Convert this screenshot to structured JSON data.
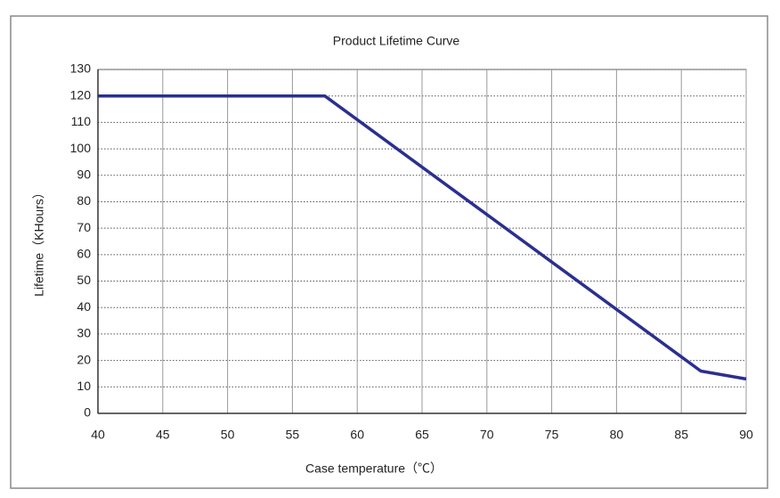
{
  "chart_data": {
    "type": "line",
    "title": "Product Lifetime Curve",
    "xlabel": "Case temperature（℃）",
    "ylabel": "Lifetime（KHours）",
    "x": [
      40,
      57.5,
      86.5,
      90
    ],
    "series": [
      {
        "name": "Lifetime",
        "color": "#2b2f8f",
        "values": [
          120,
          120,
          16,
          13
        ]
      }
    ],
    "xlim": [
      40,
      90
    ],
    "xticks": [
      40,
      45,
      50,
      55,
      60,
      65,
      70,
      75,
      80,
      85,
      90
    ],
    "ylim": [
      0,
      130
    ],
    "yticks": [
      0,
      10,
      20,
      30,
      40,
      50,
      60,
      70,
      80,
      90,
      100,
      110,
      120,
      130
    ],
    "grid": true
  }
}
